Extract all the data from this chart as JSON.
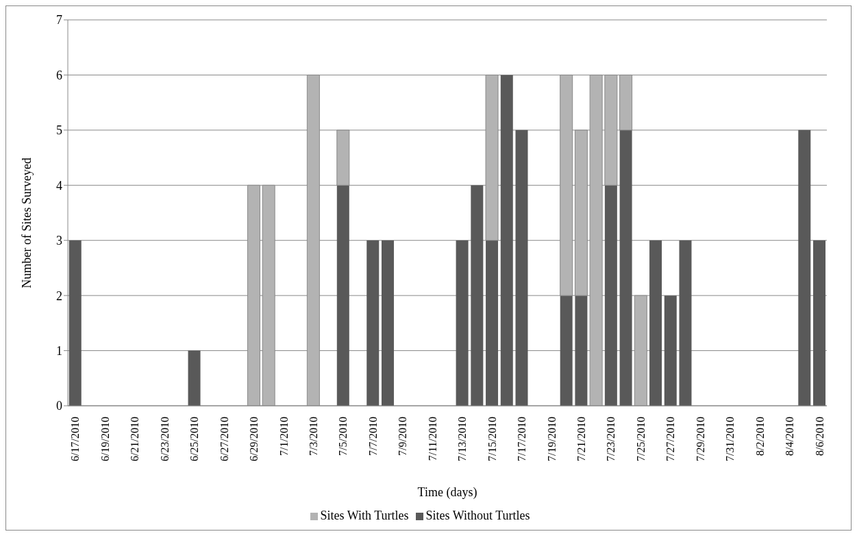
{
  "chart_data": {
    "type": "bar",
    "stacked": true,
    "xlabel": "Time (days)",
    "ylabel": "Number of Sites Surveyed",
    "categories": [
      "6/17/2010",
      null,
      "6/19/2010",
      null,
      "6/21/2010",
      null,
      "6/23/2010",
      null,
      "6/25/2010",
      null,
      "6/27/2010",
      null,
      "6/29/2010",
      null,
      "7/1/2010",
      null,
      "7/3/2010",
      null,
      "7/5/2010",
      null,
      "7/7/2010",
      null,
      "7/9/2010",
      null,
      "7/11/2010",
      null,
      "7/13/2010",
      null,
      "7/15/2010",
      null,
      "7/17/2010",
      null,
      "7/19/2010",
      null,
      "7/21/2010",
      null,
      "7/23/2010",
      null,
      "7/25/2010",
      null,
      "7/27/2010",
      null,
      "7/29/2010",
      null,
      "7/31/2010",
      null,
      "8/2/2010",
      null,
      "8/4/2010",
      null,
      "8/6/2010"
    ],
    "series": [
      {
        "name": "Sites Without Turtles",
        "color": "#595959",
        "values": [
          3,
          0,
          0,
          0,
          0,
          0,
          0,
          0,
          1,
          0,
          0,
          0,
          0,
          0,
          0,
          0,
          0,
          0,
          4,
          0,
          3,
          3,
          0,
          0,
          0,
          0,
          3,
          4,
          3,
          6,
          5,
          0,
          0,
          2,
          2,
          0,
          4,
          5,
          0,
          3,
          2,
          3,
          0,
          0,
          0,
          0,
          0,
          0,
          0,
          5,
          3
        ]
      },
      {
        "name": "Sites With Turtles",
        "color": "#b3b3b3",
        "values": [
          0,
          0,
          0,
          0,
          0,
          0,
          0,
          0,
          0,
          0,
          0,
          0,
          4,
          4,
          0,
          0,
          6,
          0,
          1,
          0,
          0,
          0,
          0,
          0,
          0,
          0,
          0,
          0,
          3,
          0,
          0,
          0,
          0,
          4,
          3,
          6,
          2,
          1,
          2,
          0,
          0,
          0,
          0,
          0,
          0,
          0,
          0,
          0,
          0,
          0,
          0
        ]
      }
    ],
    "ylim": [
      0,
      7
    ],
    "yticks": [
      0,
      1,
      2,
      3,
      4,
      5,
      6,
      7
    ],
    "grid": "y",
    "legend": "bottom"
  }
}
